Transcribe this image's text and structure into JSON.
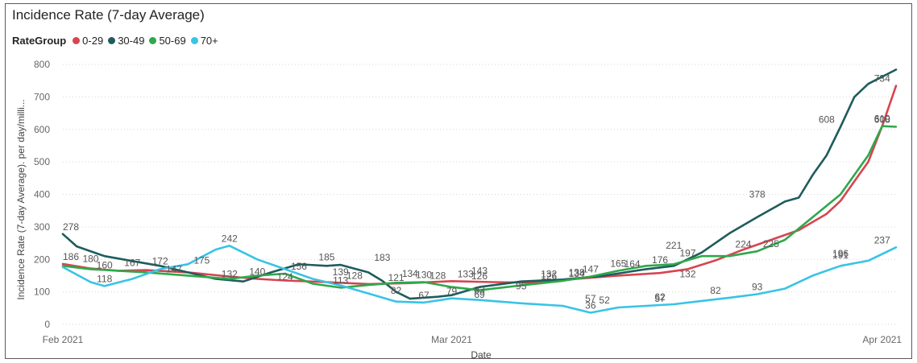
{
  "chart_data": {
    "type": "line",
    "title": "Incidence Rate (7-day Average)",
    "legend_title": "RateGroup",
    "legend_position": "top-left",
    "xlabel": "Date",
    "ylabel": "Incidence Rate (7-day Average). per day/milli...",
    "ylim": [
      0,
      800
    ],
    "yticks": [
      0,
      100,
      200,
      300,
      400,
      500,
      600,
      700,
      800
    ],
    "x_start": "2021-02-01",
    "x_end": "2021-04-02",
    "xticks": [
      {
        "date": "2021-02-01",
        "label": "Feb 2021"
      },
      {
        "date": "2021-03-01",
        "label": "Mar 2021"
      },
      {
        "date": "2021-04-01",
        "label": "Apr 2021"
      }
    ],
    "grid": true,
    "series": [
      {
        "name": "0-29",
        "color": "#D64550",
        "points": [
          [
            "2021-02-01",
            186
          ],
          [
            "2021-02-03",
            172
          ],
          [
            "2021-02-05",
            165
          ],
          [
            "2021-02-07",
            167
          ],
          [
            "2021-02-10",
            160
          ],
          [
            "2021-02-13",
            147
          ],
          [
            "2021-02-15",
            140
          ],
          [
            "2021-02-17",
            135
          ],
          [
            "2021-02-20",
            130
          ],
          [
            "2021-02-23",
            124
          ],
          [
            "2021-02-26",
            127
          ],
          [
            "2021-03-01",
            133
          ],
          [
            "2021-03-04",
            130
          ],
          [
            "2021-03-07",
            128
          ],
          [
            "2021-03-10",
            140
          ],
          [
            "2021-03-13",
            150
          ],
          [
            "2021-03-16",
            158
          ],
          [
            "2021-03-18",
            170
          ],
          [
            "2021-03-20",
            197
          ],
          [
            "2021-03-22",
            230
          ],
          [
            "2021-03-24",
            260
          ],
          [
            "2021-03-26",
            290
          ],
          [
            "2021-03-28",
            340
          ],
          [
            "2021-03-29",
            380
          ],
          [
            "2021-03-30",
            440
          ],
          [
            "2021-03-31",
            500
          ],
          [
            "2021-04-01",
            610
          ],
          [
            "2021-04-02",
            734
          ]
        ]
      },
      {
        "name": "30-49",
        "color": "#1F5C5C",
        "points": [
          [
            "2021-02-01",
            278
          ],
          [
            "2021-02-02",
            240
          ],
          [
            "2021-02-04",
            210
          ],
          [
            "2021-02-06",
            195
          ],
          [
            "2021-02-08",
            180
          ],
          [
            "2021-02-10",
            160
          ],
          [
            "2021-02-12",
            140
          ],
          [
            "2021-02-14",
            132
          ],
          [
            "2021-02-16",
            160
          ],
          [
            "2021-02-18",
            185
          ],
          [
            "2021-02-20",
            180
          ],
          [
            "2021-02-21",
            183
          ],
          [
            "2021-02-23",
            160
          ],
          [
            "2021-02-24",
            134
          ],
          [
            "2021-02-25",
            100
          ],
          [
            "2021-02-26",
            79
          ],
          [
            "2021-02-28",
            85
          ],
          [
            "2021-03-01",
            90
          ],
          [
            "2021-03-03",
            115
          ],
          [
            "2021-03-06",
            132
          ],
          [
            "2021-03-09",
            138
          ],
          [
            "2021-03-12",
            150
          ],
          [
            "2021-03-15",
            170
          ],
          [
            "2021-03-17",
            180
          ],
          [
            "2021-03-19",
            221
          ],
          [
            "2021-03-21",
            280
          ],
          [
            "2021-03-23",
            330
          ],
          [
            "2021-03-25",
            378
          ],
          [
            "2021-03-26",
            390
          ],
          [
            "2021-03-27",
            460
          ],
          [
            "2021-03-28",
            520
          ],
          [
            "2021-03-29",
            608
          ],
          [
            "2021-03-30",
            700
          ],
          [
            "2021-03-31",
            740
          ],
          [
            "2021-04-02",
            784
          ]
        ]
      },
      {
        "name": "50-69",
        "color": "#2EA84B",
        "points": [
          [
            "2021-02-01",
            180
          ],
          [
            "2021-02-03",
            170
          ],
          [
            "2021-02-05",
            165
          ],
          [
            "2021-02-07",
            160
          ],
          [
            "2021-02-10",
            150
          ],
          [
            "2021-02-13",
            140
          ],
          [
            "2021-02-15",
            150
          ],
          [
            "2021-02-17",
            156
          ],
          [
            "2021-02-19",
            125
          ],
          [
            "2021-02-21",
            113
          ],
          [
            "2021-02-23",
            121
          ],
          [
            "2021-02-25",
            128
          ],
          [
            "2021-02-27",
            130
          ],
          [
            "2021-03-01",
            115
          ],
          [
            "2021-03-03",
            105
          ],
          [
            "2021-03-06",
            120
          ],
          [
            "2021-03-09",
            134
          ],
          [
            "2021-03-11",
            147
          ],
          [
            "2021-03-13",
            165
          ],
          [
            "2021-03-15",
            180
          ],
          [
            "2021-03-17",
            185
          ],
          [
            "2021-03-19",
            210
          ],
          [
            "2021-03-21",
            210
          ],
          [
            "2021-03-23",
            225
          ],
          [
            "2021-03-25",
            260
          ],
          [
            "2021-03-27",
            330
          ],
          [
            "2021-03-29",
            400
          ],
          [
            "2021-03-31",
            520
          ],
          [
            "2021-04-01",
            610
          ],
          [
            "2021-04-02",
            608
          ]
        ]
      },
      {
        "name": "70+",
        "color": "#39C3E6",
        "points": [
          [
            "2021-02-01",
            176
          ],
          [
            "2021-02-03",
            130
          ],
          [
            "2021-02-04",
            118
          ],
          [
            "2021-02-06",
            140
          ],
          [
            "2021-02-08",
            170
          ],
          [
            "2021-02-10",
            185
          ],
          [
            "2021-02-12",
            230
          ],
          [
            "2021-02-13",
            242
          ],
          [
            "2021-02-15",
            200
          ],
          [
            "2021-02-17",
            170
          ],
          [
            "2021-02-19",
            140
          ],
          [
            "2021-02-21",
            120
          ],
          [
            "2021-02-23",
            95
          ],
          [
            "2021-02-25",
            70
          ],
          [
            "2021-02-27",
            67
          ],
          [
            "2021-03-01",
            80
          ],
          [
            "2021-03-03",
            75
          ],
          [
            "2021-03-06",
            65
          ],
          [
            "2021-03-09",
            57
          ],
          [
            "2021-03-11",
            36
          ],
          [
            "2021-03-13",
            52
          ],
          [
            "2021-03-15",
            57
          ],
          [
            "2021-03-17",
            62
          ],
          [
            "2021-03-19",
            72
          ],
          [
            "2021-03-21",
            82
          ],
          [
            "2021-03-23",
            93
          ],
          [
            "2021-03-25",
            110
          ],
          [
            "2021-03-27",
            150
          ],
          [
            "2021-03-29",
            180
          ],
          [
            "2021-03-31",
            196
          ],
          [
            "2021-04-02",
            237
          ]
        ]
      }
    ],
    "data_labels": [
      {
        "date": "2021-02-01",
        "value": 278,
        "text": "278"
      },
      {
        "date": "2021-02-01",
        "value": 186,
        "text": "186"
      },
      {
        "date": "2021-02-03",
        "value": 180,
        "text": "180"
      },
      {
        "date": "2021-02-04",
        "value": 160,
        "text": "160"
      },
      {
        "date": "2021-02-04",
        "value": 118,
        "text": "118"
      },
      {
        "date": "2021-02-06",
        "value": 167,
        "text": "167"
      },
      {
        "date": "2021-02-08",
        "value": 172,
        "text": "172"
      },
      {
        "date": "2021-02-09",
        "value": 147,
        "text": "147"
      },
      {
        "date": "2021-02-11",
        "value": 175,
        "text": "175"
      },
      {
        "date": "2021-02-13",
        "value": 242,
        "text": "242"
      },
      {
        "date": "2021-02-13",
        "value": 132,
        "text": "132"
      },
      {
        "date": "2021-02-15",
        "value": 140,
        "text": "140"
      },
      {
        "date": "2021-02-17",
        "value": 124,
        "text": "124"
      },
      {
        "date": "2021-02-18",
        "value": 156,
        "text": "156"
      },
      {
        "date": "2021-02-20",
        "value": 185,
        "text": "185"
      },
      {
        "date": "2021-02-21",
        "value": 139,
        "text": "139"
      },
      {
        "date": "2021-02-22",
        "value": 128,
        "text": "128"
      },
      {
        "date": "2021-02-21",
        "value": 113,
        "text": "113"
      },
      {
        "date": "2021-02-24",
        "value": 183,
        "text": "183"
      },
      {
        "date": "2021-02-25",
        "value": 121,
        "text": "121"
      },
      {
        "date": "2021-02-25",
        "value": 82,
        "text": "82"
      },
      {
        "date": "2021-02-26",
        "value": 134,
        "text": "134"
      },
      {
        "date": "2021-02-27",
        "value": 130,
        "text": "130"
      },
      {
        "date": "2021-02-27",
        "value": 67,
        "text": "67"
      },
      {
        "date": "2021-02-28",
        "value": 128,
        "text": "128"
      },
      {
        "date": "2021-03-01",
        "value": 79,
        "text": "79"
      },
      {
        "date": "2021-03-02",
        "value": 133,
        "text": "133"
      },
      {
        "date": "2021-03-03",
        "value": 143,
        "text": "143"
      },
      {
        "date": "2021-03-03",
        "value": 126,
        "text": "126"
      },
      {
        "date": "2021-03-03",
        "value": 69,
        "text": "69"
      },
      {
        "date": "2021-03-03",
        "value": 83,
        "text": "83"
      },
      {
        "date": "2021-03-06",
        "value": 95,
        "text": "95"
      },
      {
        "date": "2021-03-08",
        "value": 132,
        "text": "132"
      },
      {
        "date": "2021-03-08",
        "value": 126,
        "text": "126"
      },
      {
        "date": "2021-03-10",
        "value": 138,
        "text": "138"
      },
      {
        "date": "2021-03-10",
        "value": 134,
        "text": "134"
      },
      {
        "date": "2021-03-11",
        "value": 57,
        "text": "57"
      },
      {
        "date": "2021-03-11",
        "value": 147,
        "text": "147"
      },
      {
        "date": "2021-03-11",
        "value": 36,
        "text": "36"
      },
      {
        "date": "2021-03-12",
        "value": 52,
        "text": "52"
      },
      {
        "date": "2021-03-13",
        "value": 165,
        "text": "165"
      },
      {
        "date": "2021-03-14",
        "value": 164,
        "text": "164"
      },
      {
        "date": "2021-03-16",
        "value": 176,
        "text": "176"
      },
      {
        "date": "2021-03-16",
        "value": 62,
        "text": "62"
      },
      {
        "date": "2021-03-16",
        "value": 57,
        "text": "57"
      },
      {
        "date": "2021-03-17",
        "value": 221,
        "text": "221"
      },
      {
        "date": "2021-03-18",
        "value": 197,
        "text": "197"
      },
      {
        "date": "2021-03-18",
        "value": 132,
        "text": "132"
      },
      {
        "date": "2021-03-20",
        "value": 82,
        "text": "82"
      },
      {
        "date": "2021-03-22",
        "value": 224,
        "text": "224"
      },
      {
        "date": "2021-03-23",
        "value": 378,
        "text": "378"
      },
      {
        "date": "2021-03-24",
        "value": 225,
        "text": "225"
      },
      {
        "date": "2021-03-23",
        "value": 93,
        "text": "93"
      },
      {
        "date": "2021-03-28",
        "value": 608,
        "text": "608"
      },
      {
        "date": "2021-03-29",
        "value": 196,
        "text": "196"
      },
      {
        "date": "2021-03-29",
        "value": 191,
        "text": "191"
      },
      {
        "date": "2021-04-01",
        "value": 734,
        "text": "734"
      },
      {
        "date": "2021-04-01",
        "value": 610,
        "text": "610"
      },
      {
        "date": "2021-04-01",
        "value": 608,
        "text": "608"
      },
      {
        "date": "2021-04-01",
        "value": 237,
        "text": "237"
      }
    ]
  }
}
